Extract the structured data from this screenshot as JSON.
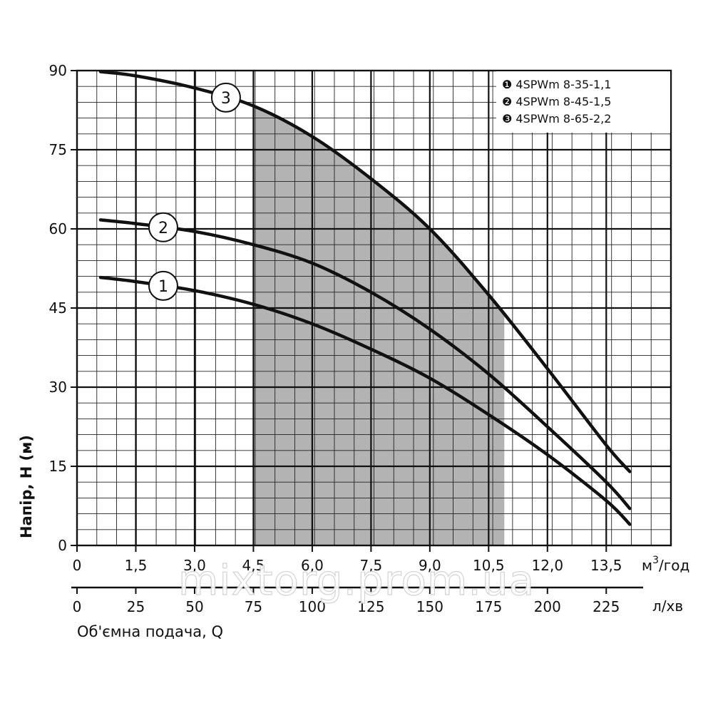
{
  "watermark": "mixtorg.prom.ua",
  "chart_data": {
    "type": "line",
    "ylabel": "Напір, Н (м)",
    "xlabel": "Об'ємна подача, Q",
    "x_unit_primary": "м",
    "x_unit_primary_sup": "3",
    "x_unit_primary_suffix": "/год",
    "x_unit_secondary": "л/хв",
    "xlim": [
      0,
      15.15
    ],
    "ylim": [
      0,
      90
    ],
    "grid": true,
    "legend_position": "top-right",
    "x_ticks": [
      0,
      1.5,
      3.0,
      4.5,
      6.0,
      7.5,
      9.0,
      10.5,
      12.0,
      13.5
    ],
    "x_tick_labels": [
      "0",
      "1,5",
      "3,0",
      "4,5",
      "6,0",
      "7,5",
      "9,0",
      "10,5",
      "12,0",
      "13,5"
    ],
    "x2_ticks": [
      0,
      25,
      50,
      75,
      100,
      125,
      150,
      175,
      200,
      225
    ],
    "x2_tick_labels": [
      "0",
      "25",
      "50",
      "75",
      "100",
      "125",
      "150",
      "175",
      "200",
      "225"
    ],
    "y_ticks": [
      0,
      15,
      30,
      45,
      60,
      75,
      90
    ],
    "y_tick_labels": [
      "0",
      "15",
      "30",
      "45",
      "60",
      "75",
      "90"
    ],
    "working_range": [
      4.5,
      10.9
    ],
    "series": [
      {
        "name": "4SPWm 8-35-1,1",
        "marker": "1",
        "marker_glyph": "❶",
        "x": [
          0.6,
          1.5,
          3.0,
          4.5,
          6.0,
          7.5,
          9.0,
          10.5,
          12.0,
          13.5,
          14.1
        ],
        "y": [
          50.8,
          50.0,
          48.3,
          45.7,
          42.0,
          37.2,
          31.7,
          24.8,
          17.2,
          8.5,
          4.0
        ]
      },
      {
        "name": "4SPWm 8-45-1,5",
        "marker": "2",
        "marker_glyph": "❷",
        "x": [
          0.6,
          1.5,
          3.0,
          4.5,
          6.0,
          7.5,
          9.0,
          10.5,
          12.0,
          13.5,
          14.1
        ],
        "y": [
          61.7,
          61.0,
          59.5,
          57.0,
          53.5,
          48.0,
          41.0,
          32.5,
          22.5,
          12.0,
          7.0
        ]
      },
      {
        "name": "4SPWm 8-65-2,2",
        "marker": "3",
        "marker_glyph": "❸",
        "x": [
          0.6,
          1.5,
          3.0,
          4.5,
          6.0,
          7.5,
          9.0,
          10.5,
          12.0,
          13.5,
          14.1
        ],
        "y": [
          89.8,
          89.0,
          86.7,
          83.3,
          77.5,
          69.5,
          60.0,
          47.5,
          33.5,
          19.0,
          14.0
        ]
      }
    ],
    "curve_label_positions": [
      2.2,
      2.2,
      3.8
    ]
  }
}
